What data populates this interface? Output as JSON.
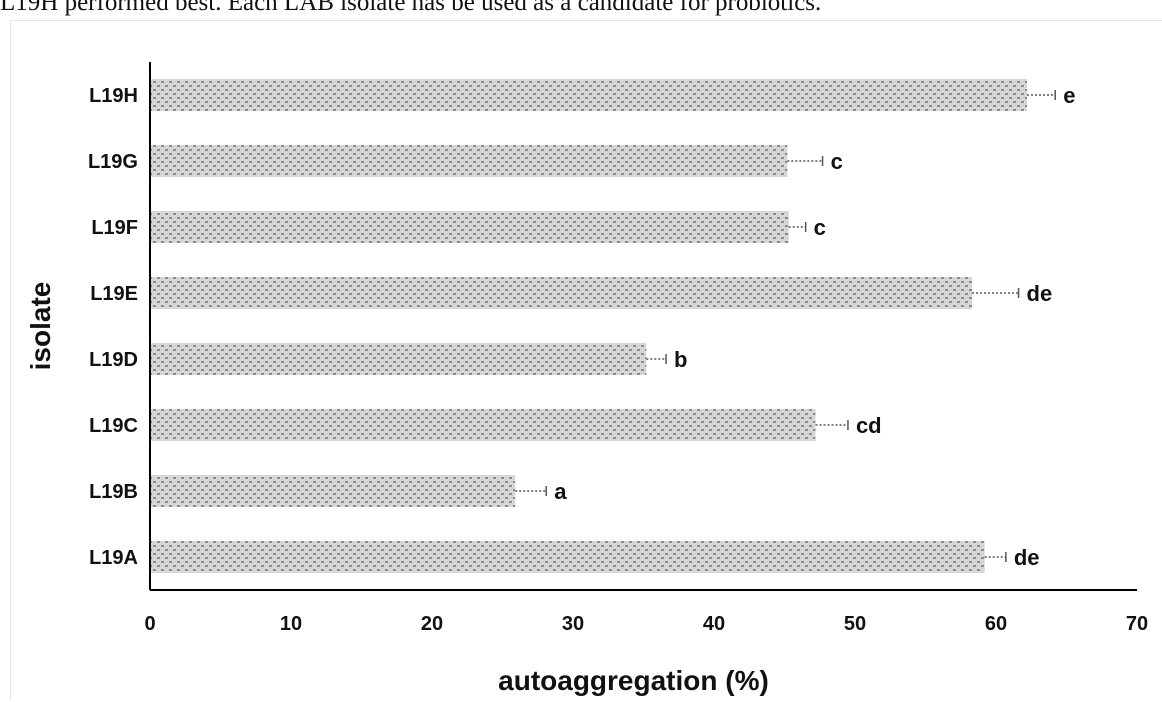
{
  "caption": "L19H performed best. Each LAB isolate has      be used as a candidate for probiotics.",
  "colors": {
    "bar_fill": "#d6d6d6",
    "bar_dot": "#8c8c8c",
    "axis": "#000000",
    "error_bar": "#555555"
  },
  "chart_data": {
    "type": "bar",
    "orientation": "horizontal",
    "title": "",
    "xlabel": "autoaggregation (%)",
    "ylabel": "isolate",
    "xlim": [
      0,
      70
    ],
    "x_ticks": [
      0,
      10,
      20,
      30,
      40,
      50,
      60,
      70
    ],
    "grid": false,
    "legend": "none",
    "categories": [
      "L19A",
      "L19B",
      "L19C",
      "L19D",
      "L19E",
      "L19F",
      "L19G",
      "L19H"
    ],
    "values": [
      59.2,
      25.9,
      47.2,
      35.2,
      58.3,
      45.3,
      45.2,
      62.2
    ],
    "errors": [
      1.5,
      2.2,
      2.3,
      1.4,
      3.3,
      1.2,
      2.5,
      2.0
    ],
    "significance": [
      "de",
      "a",
      "cd",
      "b",
      "de",
      "c",
      "c",
      "e"
    ]
  }
}
